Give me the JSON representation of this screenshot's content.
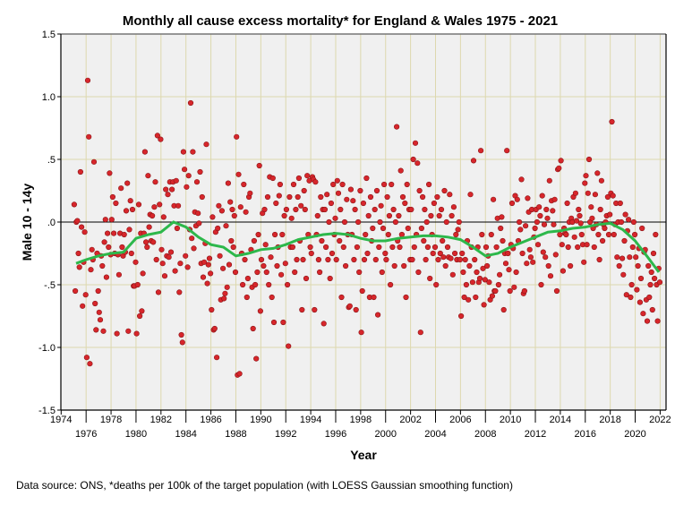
{
  "chart_data": {
    "type": "scatter",
    "title": "Monthly all cause excess mortality* for England & Wales 1975 - 2021",
    "xlabel": "Year",
    "ylabel": "Male 10 - 14y",
    "footnote": "Data source: ONS, *deaths per 100k of the target population (with LOESS Gaussian smoothing function)",
    "xlim": [
      1974,
      2022.5
    ],
    "ylim": [
      -1.5,
      1.5
    ],
    "grid": true,
    "x_ticks": [
      1974,
      1976,
      1978,
      1980,
      1982,
      1984,
      1986,
      1988,
      1990,
      1992,
      1994,
      1996,
      1998,
      2000,
      2002,
      2004,
      2006,
      2008,
      2010,
      2012,
      2014,
      2016,
      2018,
      2020,
      2022
    ],
    "x_tick_labels": [
      "1974",
      "1976",
      "1978",
      "1980",
      "1982",
      "1984",
      "1986",
      "1988",
      "1990",
      "1992",
      "1994",
      "1996",
      "1998",
      "2000",
      "2002",
      "2004",
      "2006",
      "2008",
      "2010",
      "2012",
      "2014",
      "2016",
      "2018",
      "2020",
      "2022"
    ],
    "y_ticks": [
      1.5,
      1.0,
      0.5,
      0.0,
      -0.5,
      -1.0,
      -1.5
    ],
    "y_tick_labels": [
      "1.5",
      "1.0",
      ".5",
      ".0",
      "-.5",
      "-1.0",
      "-1.5"
    ],
    "reference_line_y": 0,
    "series": [
      {
        "name": "monthly excess mortality",
        "type": "scatter",
        "color": "#d7262b",
        "start_year": 1975,
        "step": "monthly",
        "values_by_year": [
          [
            0.14,
            -0.55,
            0.0,
            0.01,
            -0.25,
            -0.36,
            0.4,
            -0.04,
            -0.67,
            -0.32,
            -0.08,
            -0.58
          ],
          [
            -1.08,
            1.13,
            0.68,
            -1.13,
            -0.38,
            -0.22,
            -0.3,
            0.48,
            -0.65,
            -0.86,
            -0.25,
            -0.55
          ],
          [
            -0.72,
            -0.78,
            -0.27,
            -0.35,
            -0.87,
            -0.16,
            0.02,
            -0.44,
            -0.09,
            -0.2,
            0.39,
            -0.26
          ],
          [
            0.02,
            0.2,
            -0.09,
            -0.25,
            0.15,
            -0.89,
            -0.26,
            -0.42,
            -0.09,
            0.27,
            -0.2,
            -0.27
          ],
          [
            -0.1,
            -0.24,
            0.09,
            0.31,
            -0.87,
            -0.06,
            0.17,
            -0.25,
            0.1,
            -0.51,
            -0.51,
            -0.32
          ],
          [
            -0.89,
            -0.5,
            0.14,
            -0.75,
            -0.09,
            -0.71,
            -0.41,
            -0.09,
            0.56,
            -0.16,
            -0.2,
            0.37
          ],
          [
            -0.04,
            0.06,
            -0.15,
            0.05,
            -0.16,
            0.12,
            0.32,
            -0.3,
            0.69,
            -0.56,
            0.14,
            0.66
          ],
          [
            -0.22,
            -0.33,
            0.04,
            -0.43,
            0.26,
            -0.27,
            0.22,
            -0.28,
            0.32,
            -0.24,
            0.26,
            0.32
          ],
          [
            0.13,
            -0.39,
            0.33,
            -0.05,
            0.13,
            -0.56,
            -0.33,
            -0.9,
            -0.96,
            0.56,
            0.42,
            -0.27
          ],
          [
            0.28,
            -0.36,
            0.37,
            -0.06,
            0.95,
            -0.13,
            0.56,
            -0.21,
            0.08,
            -0.03,
            0.32,
            0.07
          ],
          [
            -0.01,
            0.4,
            -0.33,
            0.2,
            -0.44,
            -0.32,
            -0.17,
            0.62,
            -0.49,
            -0.34,
            -0.29,
            -0.41
          ],
          [
            -0.7,
            0.04,
            -0.86,
            -0.85,
            -0.08,
            -1.08,
            -0.05,
            0.13,
            -0.27,
            -0.62,
            0.09,
            -0.37
          ],
          [
            -0.61,
            -0.57,
            -0.03,
            -0.52,
            0.31,
            -0.34,
            0.16,
            -0.15,
            0.1,
            -0.2,
            0.05,
            -0.4
          ],
          [
            0.68,
            -1.22,
            0.38,
            -1.21,
            0.12,
            -0.25,
            -0.5,
            0.3,
            -0.3,
            0.08,
            -0.6,
            -0.45
          ],
          [
            0.2,
            0.23,
            -0.22,
            -0.52,
            -0.85,
            -0.15,
            -0.5,
            -1.09,
            -0.4,
            -0.1,
            0.45,
            -0.71
          ],
          [
            -0.3,
            0.07,
            -0.35,
            0.1,
            -0.18,
            -0.4,
            0.2,
            -0.5,
            0.36,
            -0.28,
            -0.6,
            0.35
          ],
          [
            -0.8,
            -0.1,
            0.15,
            -0.35,
            -0.2,
            0.21,
            0.3,
            -0.42,
            -0.1,
            -0.8,
            0.05,
            -0.33
          ],
          [
            0.1,
            -0.5,
            -0.99,
            0.2,
            -0.2,
            0.03,
            -0.2,
            0.3,
            -0.4,
            0.1,
            -0.3,
            0.2
          ],
          [
            0.35,
            -0.15,
            0.13,
            -0.7,
            -0.3,
            0.25,
            0.1,
            -0.45,
            0.37,
            -0.1,
            0.33,
            -0.2
          ],
          [
            -0.25,
            0.36,
            0.34,
            -0.7,
            0.32,
            -0.1,
            0.05,
            -0.3,
            -0.4,
            0.2,
            -0.15,
            0.1
          ],
          [
            -0.81,
            0.1,
            -0.2,
            0.22,
            -0.3,
            0.0,
            -0.45,
            0.15,
            -0.25,
            0.3,
            -0.1,
            0.03
          ],
          [
            -0.3,
            0.33,
            0.23,
            -0.15,
            0.1,
            -0.6,
            0.3,
            -0.2,
            0.0,
            -0.35,
            0.18,
            -0.1
          ],
          [
            -0.68,
            -0.67,
            0.26,
            -0.1,
            0.17,
            -0.3,
            0.1,
            -0.7,
            -0.2,
            0.0,
            -0.4,
            0.25
          ],
          [
            -0.88,
            -0.55,
            0.15,
            -0.3,
            -0.1,
            0.35,
            -0.25,
            0.05,
            -0.6,
            0.2,
            -0.15,
            -0.05
          ],
          [
            -0.6,
            0.1,
            -0.3,
            0.25,
            -0.74,
            -0.2,
            0.0,
            0.13,
            -0.4,
            -0.05,
            0.3,
            -0.25
          ],
          [
            -0.3,
            0.2,
            -0.1,
            0.05,
            -0.5,
            0.3,
            -0.2,
            0.1,
            -0.35,
            0.0,
            0.76,
            -0.15
          ],
          [
            0.05,
            -0.2,
            0.41,
            -0.1,
            0.2,
            -0.35,
            0.15,
            -0.6,
            0.3,
            -0.05,
            0.1,
            -0.3
          ],
          [
            0.1,
            -0.3,
            0.5,
            -0.2,
            0.63,
            -0.1,
            0.47,
            -0.4,
            0.25,
            -0.88,
            -0.05,
            0.2
          ],
          [
            -0.15,
            0.1,
            -0.3,
            0.0,
            -0.2,
            0.3,
            -0.45,
            0.05,
            -0.1,
            -0.25,
            0.15,
            -0.2
          ],
          [
            -0.5,
            0.2,
            -0.3,
            0.05,
            -0.25,
            0.1,
            -0.15,
            -0.28,
            0.25,
            -0.35,
            0.0,
            -0.2
          ],
          [
            -0.28,
            0.22,
            -0.29,
            0.05,
            -0.42,
            0.12,
            -0.25,
            -0.1,
            -0.3,
            -0.06,
            0.0,
            -0.3
          ],
          [
            -0.75,
            -0.25,
            -0.4,
            -0.6,
            -0.3,
            -0.5,
            -0.15,
            -0.62,
            -0.35,
            0.22,
            -0.2,
            -0.48
          ],
          [
            0.49,
            -0.3,
            -0.6,
            -0.4,
            -0.2,
            -0.48,
            -0.45,
            0.57,
            -0.1,
            -0.37,
            -0.66,
            -0.46
          ],
          [
            -0.2,
            -0.35,
            -0.27,
            -0.48,
            -0.62,
            -0.1,
            -0.59,
            0.18,
            -0.55,
            -0.55,
            -0.2,
            0.03
          ],
          [
            -0.5,
            -0.42,
            -0.05,
            0.04,
            -0.15,
            -0.7,
            -0.25,
            -0.33,
            0.57,
            -0.25,
            -0.38,
            -0.55
          ],
          [
            -0.18,
            0.15,
            -0.21,
            -0.52,
            0.21,
            -0.4,
            0.18,
            -0.15,
            0.0,
            -0.06,
            0.34,
            -0.25
          ],
          [
            -0.57,
            -0.55,
            -0.03,
            -0.33,
            0.19,
            0.08,
            -0.22,
            -0.28,
            0.1,
            -0.32,
            -0.12,
            -0.05
          ],
          [
            0.1,
            0.0,
            -0.18,
            0.12,
            0.05,
            -0.5,
            0.21,
            -0.24,
            -0.02,
            -0.28,
            0.1,
            0.03
          ],
          [
            -0.35,
            0.33,
            -0.43,
            0.17,
            0.09,
            -0.02,
            0.18,
            -0.26,
            -0.55,
            0.42,
            0.43,
            -0.1
          ],
          [
            0.49,
            -0.18,
            -0.39,
            -0.05,
            -0.09,
            -0.1,
            0.15,
            -0.2,
            0.0,
            -0.35,
            0.03,
            0.0
          ],
          [
            0.2,
            -0.12,
            0.23,
            0.01,
            -0.2,
            0.1,
            0.05,
            -0.01,
            -0.1,
            -0.18,
            -0.32,
            0.31
          ],
          [
            0.37,
            -0.18,
            0.23,
            0.5,
            0.0,
            0.12,
            0.03,
            -0.05,
            -0.2,
            0.22,
            -0.02,
            0.39
          ],
          [
            -0.1,
            -0.3,
            0.1,
            0.33,
            -0.15,
            -0.02,
            -0.05,
            0.0,
            0.05,
            0.2,
            -0.1,
            0.06
          ],
          [
            0.23,
            0.8,
            0.21,
            -0.1,
            -0.02,
            0.15,
            -0.28,
            0.0,
            -0.35,
            0.15,
            0.0,
            -0.29
          ],
          [
            -0.42,
            -0.15,
            0.06,
            -0.58,
            -0.07,
            0.02,
            -0.28,
            -0.6,
            -0.5,
            -0.2,
            0.0,
            -0.1
          ],
          [
            -0.28,
            -0.54,
            -0.35,
            -0.21,
            -0.64,
            -0.45,
            -0.05,
            -0.73,
            -0.24,
            -0.22,
            -0.62,
            -0.79
          ],
          [
            -0.35,
            -0.6,
            -0.5,
            -0.4,
            -0.7,
            -0.25,
            -0.45,
            -0.1,
            -0.5,
            -0.79,
            -0.37,
            -0.48
          ]
        ]
      },
      {
        "name": "LOESS smoothing",
        "type": "line",
        "color": "#2db84b",
        "x": [
          1975.2,
          1976,
          1977,
          1978,
          1979,
          1980,
          1981,
          1982,
          1983,
          1984,
          1985,
          1986,
          1987,
          1988,
          1989,
          1990,
          1991,
          1992,
          1993,
          1994,
          1995,
          1996,
          1997,
          1998,
          1999,
          2000,
          2001,
          2002,
          2003,
          2004,
          2005,
          2006,
          2007,
          2008,
          2009,
          2010,
          2011,
          2012,
          2013,
          2014,
          2015,
          2016,
          2017,
          2018,
          2019,
          2020,
          2021,
          2021.9
        ],
        "y": [
          -0.33,
          -0.3,
          -0.27,
          -0.25,
          -0.24,
          -0.13,
          -0.1,
          -0.08,
          0.0,
          -0.04,
          -0.12,
          -0.18,
          -0.2,
          -0.27,
          -0.25,
          -0.22,
          -0.21,
          -0.18,
          -0.14,
          -0.12,
          -0.1,
          -0.09,
          -0.1,
          -0.13,
          -0.15,
          -0.15,
          -0.13,
          -0.12,
          -0.11,
          -0.11,
          -0.12,
          -0.14,
          -0.2,
          -0.27,
          -0.25,
          -0.2,
          -0.16,
          -0.12,
          -0.08,
          -0.07,
          -0.05,
          -0.04,
          -0.02,
          -0.01,
          -0.06,
          -0.15,
          -0.28,
          -0.4
        ]
      }
    ],
    "colors": {
      "plot_bg": "#f0f0f0",
      "grid": "#ddd8ae",
      "point": "#d7262b",
      "loess": "#2db84b"
    }
  }
}
